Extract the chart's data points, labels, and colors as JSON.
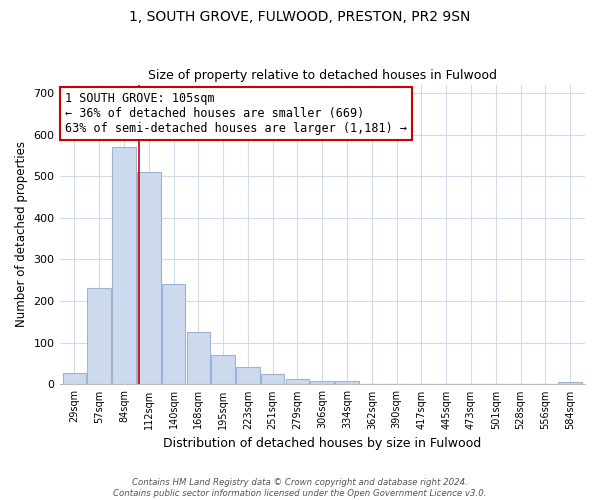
{
  "title": "1, SOUTH GROVE, FULWOOD, PRESTON, PR2 9SN",
  "subtitle": "Size of property relative to detached houses in Fulwood",
  "xlabel": "Distribution of detached houses by size in Fulwood",
  "ylabel": "Number of detached properties",
  "bin_labels": [
    "29sqm",
    "57sqm",
    "84sqm",
    "112sqm",
    "140sqm",
    "168sqm",
    "195sqm",
    "223sqm",
    "251sqm",
    "279sqm",
    "306sqm",
    "334sqm",
    "362sqm",
    "390sqm",
    "417sqm",
    "445sqm",
    "473sqm",
    "501sqm",
    "528sqm",
    "556sqm",
    "584sqm"
  ],
  "bar_values": [
    28,
    232,
    570,
    510,
    242,
    127,
    70,
    43,
    26,
    14,
    9,
    8,
    2,
    2,
    1,
    1,
    0,
    0,
    0,
    0,
    6
  ],
  "bar_color": "#cdd9ed",
  "bar_edge_color": "#9db4d4",
  "vline_x_index": 2.62,
  "vline_color": "#cc0000",
  "annotation_line1": "1 SOUTH GROVE: 105sqm",
  "annotation_line2": "← 36% of detached houses are smaller (669)",
  "annotation_line3": "63% of semi-detached houses are larger (1,181) →",
  "annotation_box_color": "#ffffff",
  "annotation_box_edge": "#cc0000",
  "ylim": [
    0,
    720
  ],
  "yticks": [
    0,
    100,
    200,
    300,
    400,
    500,
    600,
    700
  ],
  "footer_line1": "Contains HM Land Registry data © Crown copyright and database right 2024.",
  "footer_line2": "Contains public sector information licensed under the Open Government Licence v3.0.",
  "bg_color": "#ffffff",
  "grid_color": "#d0dcea",
  "title_fontsize": 10,
  "subtitle_fontsize": 9
}
